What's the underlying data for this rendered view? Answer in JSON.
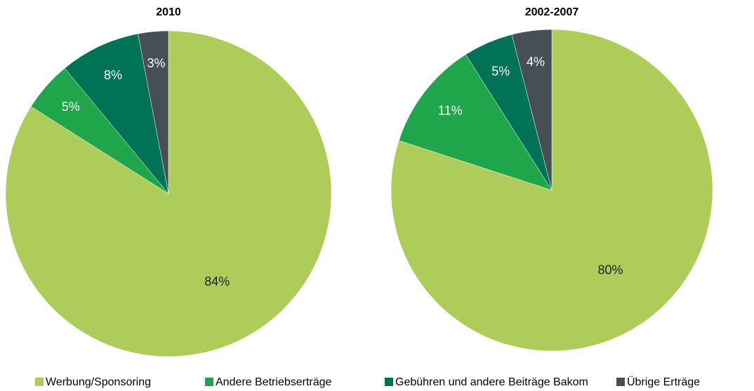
{
  "chart_data": [
    {
      "type": "pie",
      "title": "2010",
      "categories": [
        "Werbung/Sponsoring",
        "Andere Betriebserträge",
        "Gebühren und andere Beiträge Bakom",
        "Übrige Erträge"
      ],
      "values": [
        84,
        5,
        8,
        3
      ],
      "value_labels": [
        "84%",
        "5%",
        "8%",
        "3%"
      ],
      "colors": [
        "#adcc5a",
        "#1fa64a",
        "#007356",
        "#474f56"
      ]
    },
    {
      "type": "pie",
      "title": "2002-2007",
      "categories": [
        "Werbung/Sponsoring",
        "Andere Betriebserträge",
        "Gebühren und andere Beiträge Bakom",
        "Übrige Erträge"
      ],
      "values": [
        80,
        11,
        5,
        4
      ],
      "value_labels": [
        "80%",
        "11%",
        "5%",
        "4%"
      ],
      "colors": [
        "#adcc5a",
        "#1fa64a",
        "#007356",
        "#474f56"
      ]
    }
  ]
}
